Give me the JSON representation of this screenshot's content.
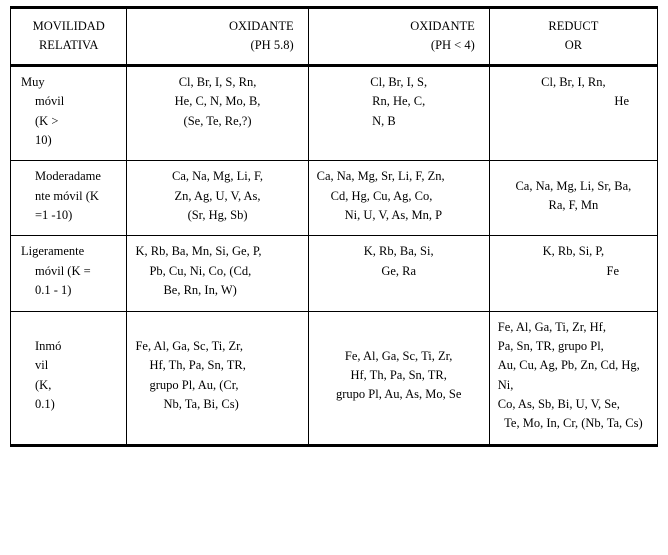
{
  "table": {
    "columns": {
      "mobility": {
        "l1": "MOVILIDAD",
        "l2": "RELATIVA"
      },
      "ox58": {
        "l1": "OXIDANTE",
        "l2": "(PH 5.8)"
      },
      "ox4": {
        "l1": "OXIDANTE",
        "l2": "(PH < 4)"
      },
      "reduct": {
        "l1": "REDUCT",
        "l2": "OR"
      }
    },
    "rows": [
      {
        "mobility": {
          "a": "Muy",
          "b": "móvil",
          "c": "(K >",
          "d": "10)"
        },
        "ox58": {
          "a": "Cl, Br, I, S, Rn,",
          "b": "He, C, N, Mo, B,",
          "c": "(Se, Te, Re,?)"
        },
        "ox4": {
          "a": "Cl, Br, I, S,",
          "b": "Rn, He, C,",
          "c": "N, B"
        },
        "red": {
          "a": "Cl, Br, I, Rn,",
          "b": "He"
        }
      },
      {
        "mobility": {
          "a": "Moderadame",
          "b": "nte móvil (K",
          "c": "=1 -10)"
        },
        "ox58": {
          "a": "Ca, Na, Mg, Li, F,",
          "b": "Zn, Ag, U, V, As,",
          "c": "(Sr, Hg, Sb)"
        },
        "ox4": {
          "a": "Ca, Na, Mg, Sr, Li, F, Zn,",
          "b": "Cd, Hg, Cu, Ag, Co,",
          "c": "Ni, U, V, As, Mn, P"
        },
        "red": {
          "a": "Ca, Na, Mg, Li, Sr, Ba,",
          "b": "Ra, F, Mn"
        }
      },
      {
        "mobility": {
          "a": "Ligeramente",
          "b": "móvil (K =",
          "c": "0.1 - 1)"
        },
        "ox58": {
          "a": "K, Rb, Ba, Mn, Si, Ge, P,",
          "b": "Pb, Cu, Ni, Co, (Cd,",
          "c": "Be, Rn, In, W)"
        },
        "ox4": {
          "a": "K, Rb, Ba, Si,",
          "b": "Ge, Ra"
        },
        "red": {
          "a": "K, Rb, Si, P,",
          "b": "Fe"
        }
      },
      {
        "mobility": {
          "a": "Inmó",
          "b": "vil",
          "c": "(K,",
          "d": "0.1)"
        },
        "ox58": {
          "a": "Fe, Al, Ga, Sc, Ti, Zr,",
          "b": "Hf, Th, Pa, Sn, TR,",
          "c": "grupo Pl, Au, (Cr,",
          "d": "Nb, Ta, Bi, Cs)"
        },
        "ox4": {
          "a": "Fe, Al, Ga, Sc, Ti, Zr,",
          "b": "Hf, Th, Pa, Sn, TR,",
          "c": "grupo Pl, Au, As, Mo, Se"
        },
        "red": {
          "a": "Fe,  Al,  Ga,  Ti,  Zr,  Hf,",
          "b": "Pa,  Sn,  TR,  grupo  Pl,",
          "c": "Au, Cu, Ag, Pb, Zn, Cd, Hg, Ni,",
          "d": " Co, As, Sb, Bi, U, V, Se,",
          "e": "Te, Mo, In, Cr, (Nb, Ta, Cs)"
        }
      }
    ]
  }
}
